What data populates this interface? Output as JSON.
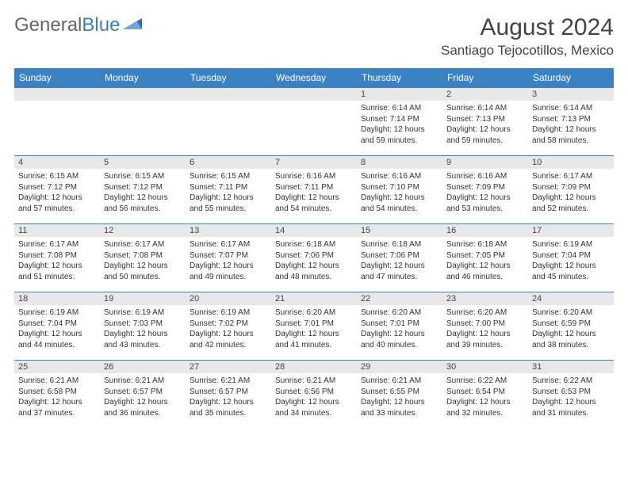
{
  "brand": {
    "part1": "General",
    "part2": "Blue"
  },
  "title": {
    "month": "August 2024",
    "location": "Santiago Tejocotillos, Mexico"
  },
  "colors": {
    "header_bg": "#3b82c4",
    "header_text": "#ffffff",
    "daynum_bg": "#e8e8e8",
    "row_border": "#3b82c4",
    "background": "#ffffff",
    "text": "#333333"
  },
  "dayHeaders": [
    "Sunday",
    "Monday",
    "Tuesday",
    "Wednesday",
    "Thursday",
    "Friday",
    "Saturday"
  ],
  "weeks": [
    [
      {
        "blank": true
      },
      {
        "blank": true
      },
      {
        "blank": true
      },
      {
        "blank": true
      },
      {
        "n": "1",
        "sunrise": "6:14 AM",
        "sunset": "7:14 PM",
        "dl": "12 hours and 59 minutes."
      },
      {
        "n": "2",
        "sunrise": "6:14 AM",
        "sunset": "7:13 PM",
        "dl": "12 hours and 59 minutes."
      },
      {
        "n": "3",
        "sunrise": "6:14 AM",
        "sunset": "7:13 PM",
        "dl": "12 hours and 58 minutes."
      }
    ],
    [
      {
        "n": "4",
        "sunrise": "6:15 AM",
        "sunset": "7:12 PM",
        "dl": "12 hours and 57 minutes."
      },
      {
        "n": "5",
        "sunrise": "6:15 AM",
        "sunset": "7:12 PM",
        "dl": "12 hours and 56 minutes."
      },
      {
        "n": "6",
        "sunrise": "6:15 AM",
        "sunset": "7:11 PM",
        "dl": "12 hours and 55 minutes."
      },
      {
        "n": "7",
        "sunrise": "6:16 AM",
        "sunset": "7:11 PM",
        "dl": "12 hours and 54 minutes."
      },
      {
        "n": "8",
        "sunrise": "6:16 AM",
        "sunset": "7:10 PM",
        "dl": "12 hours and 54 minutes."
      },
      {
        "n": "9",
        "sunrise": "6:16 AM",
        "sunset": "7:09 PM",
        "dl": "12 hours and 53 minutes."
      },
      {
        "n": "10",
        "sunrise": "6:17 AM",
        "sunset": "7:09 PM",
        "dl": "12 hours and 52 minutes."
      }
    ],
    [
      {
        "n": "11",
        "sunrise": "6:17 AM",
        "sunset": "7:08 PM",
        "dl": "12 hours and 51 minutes."
      },
      {
        "n": "12",
        "sunrise": "6:17 AM",
        "sunset": "7:08 PM",
        "dl": "12 hours and 50 minutes."
      },
      {
        "n": "13",
        "sunrise": "6:17 AM",
        "sunset": "7:07 PM",
        "dl": "12 hours and 49 minutes."
      },
      {
        "n": "14",
        "sunrise": "6:18 AM",
        "sunset": "7:06 PM",
        "dl": "12 hours and 48 minutes."
      },
      {
        "n": "15",
        "sunrise": "6:18 AM",
        "sunset": "7:06 PM",
        "dl": "12 hours and 47 minutes."
      },
      {
        "n": "16",
        "sunrise": "6:18 AM",
        "sunset": "7:05 PM",
        "dl": "12 hours and 46 minutes."
      },
      {
        "n": "17",
        "sunrise": "6:19 AM",
        "sunset": "7:04 PM",
        "dl": "12 hours and 45 minutes."
      }
    ],
    [
      {
        "n": "18",
        "sunrise": "6:19 AM",
        "sunset": "7:04 PM",
        "dl": "12 hours and 44 minutes."
      },
      {
        "n": "19",
        "sunrise": "6:19 AM",
        "sunset": "7:03 PM",
        "dl": "12 hours and 43 minutes."
      },
      {
        "n": "20",
        "sunrise": "6:19 AM",
        "sunset": "7:02 PM",
        "dl": "12 hours and 42 minutes."
      },
      {
        "n": "21",
        "sunrise": "6:20 AM",
        "sunset": "7:01 PM",
        "dl": "12 hours and 41 minutes."
      },
      {
        "n": "22",
        "sunrise": "6:20 AM",
        "sunset": "7:01 PM",
        "dl": "12 hours and 40 minutes."
      },
      {
        "n": "23",
        "sunrise": "6:20 AM",
        "sunset": "7:00 PM",
        "dl": "12 hours and 39 minutes."
      },
      {
        "n": "24",
        "sunrise": "6:20 AM",
        "sunset": "6:59 PM",
        "dl": "12 hours and 38 minutes."
      }
    ],
    [
      {
        "n": "25",
        "sunrise": "6:21 AM",
        "sunset": "6:58 PM",
        "dl": "12 hours and 37 minutes."
      },
      {
        "n": "26",
        "sunrise": "6:21 AM",
        "sunset": "6:57 PM",
        "dl": "12 hours and 36 minutes."
      },
      {
        "n": "27",
        "sunrise": "6:21 AM",
        "sunset": "6:57 PM",
        "dl": "12 hours and 35 minutes."
      },
      {
        "n": "28",
        "sunrise": "6:21 AM",
        "sunset": "6:56 PM",
        "dl": "12 hours and 34 minutes."
      },
      {
        "n": "29",
        "sunrise": "6:21 AM",
        "sunset": "6:55 PM",
        "dl": "12 hours and 33 minutes."
      },
      {
        "n": "30",
        "sunrise": "6:22 AM",
        "sunset": "6:54 PM",
        "dl": "12 hours and 32 minutes."
      },
      {
        "n": "31",
        "sunrise": "6:22 AM",
        "sunset": "6:53 PM",
        "dl": "12 hours and 31 minutes."
      }
    ]
  ]
}
